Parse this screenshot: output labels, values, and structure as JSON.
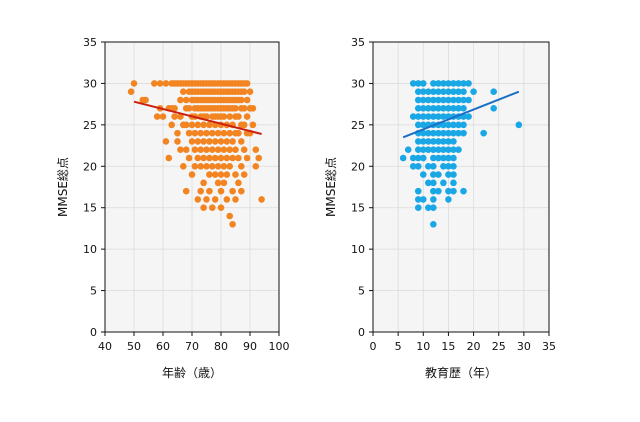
{
  "chart_data": [
    {
      "type": "scatter",
      "xlabel": "年齢（歳）",
      "ylabel": "MMSE総点",
      "xlim": [
        40,
        100
      ],
      "ylim": [
        0,
        35
      ],
      "xticks": [
        40,
        50,
        60,
        70,
        80,
        90,
        100
      ],
      "yticks": [
        0,
        5,
        10,
        15,
        20,
        25,
        30,
        35
      ],
      "grid": true,
      "point_color": "#f28522",
      "trend_color": "#cc1f10",
      "trendline": {
        "x": [
          50,
          94
        ],
        "y": [
          27.8,
          23.9
        ]
      },
      "points": [
        [
          49,
          29
        ],
        [
          50,
          30
        ],
        [
          53,
          28
        ],
        [
          54,
          28
        ],
        [
          57,
          30
        ],
        [
          58,
          26
        ],
        [
          59,
          30
        ],
        [
          59,
          27
        ],
        [
          60,
          26
        ],
        [
          61,
          30
        ],
        [
          61,
          23
        ],
        [
          62,
          27
        ],
        [
          62,
          21
        ],
        [
          63,
          30
        ],
        [
          63,
          27
        ],
        [
          63,
          25
        ],
        [
          64,
          30
        ],
        [
          64,
          27
        ],
        [
          64,
          26
        ],
        [
          65,
          30
        ],
        [
          65,
          24
        ],
        [
          65,
          23
        ],
        [
          66,
          30
        ],
        [
          66,
          28
        ],
        [
          66,
          26
        ],
        [
          66,
          22
        ],
        [
          67,
          30
        ],
        [
          67,
          29
        ],
        [
          67,
          25
        ],
        [
          67,
          20
        ],
        [
          68,
          30
        ],
        [
          68,
          28
        ],
        [
          68,
          27
        ],
        [
          68,
          25
        ],
        [
          68,
          22
        ],
        [
          68,
          17
        ],
        [
          69,
          30
        ],
        [
          69,
          29
        ],
        [
          69,
          27
        ],
        [
          69,
          24
        ],
        [
          69,
          21
        ],
        [
          70,
          30
        ],
        [
          70,
          29
        ],
        [
          70,
          28
        ],
        [
          70,
          26
        ],
        [
          70,
          25
        ],
        [
          70,
          23
        ],
        [
          70,
          19
        ],
        [
          71,
          30
        ],
        [
          71,
          29
        ],
        [
          71,
          28
        ],
        [
          71,
          27
        ],
        [
          71,
          26
        ],
        [
          71,
          24
        ],
        [
          71,
          22
        ],
        [
          71,
          20
        ],
        [
          72,
          30
        ],
        [
          72,
          29
        ],
        [
          72,
          28
        ],
        [
          72,
          27
        ],
        [
          72,
          25
        ],
        [
          72,
          23
        ],
        [
          72,
          21
        ],
        [
          72,
          16
        ],
        [
          73,
          30
        ],
        [
          73,
          29
        ],
        [
          73,
          28
        ],
        [
          73,
          27
        ],
        [
          73,
          26
        ],
        [
          73,
          24
        ],
        [
          73,
          22
        ],
        [
          73,
          20
        ],
        [
          73,
          17
        ],
        [
          74,
          30
        ],
        [
          74,
          29
        ],
        [
          74,
          28
        ],
        [
          74,
          27
        ],
        [
          74,
          26
        ],
        [
          74,
          25
        ],
        [
          74,
          23
        ],
        [
          74,
          21
        ],
        [
          74,
          18
        ],
        [
          74,
          15
        ],
        [
          75,
          30
        ],
        [
          75,
          29
        ],
        [
          75,
          28
        ],
        [
          75,
          27
        ],
        [
          75,
          26
        ],
        [
          75,
          24
        ],
        [
          75,
          22
        ],
        [
          75,
          20
        ],
        [
          75,
          16
        ],
        [
          76,
          30
        ],
        [
          76,
          29
        ],
        [
          76,
          28
        ],
        [
          76,
          27
        ],
        [
          76,
          25
        ],
        [
          76,
          23
        ],
        [
          76,
          21
        ],
        [
          76,
          19
        ],
        [
          76,
          17
        ],
        [
          77,
          30
        ],
        [
          77,
          29
        ],
        [
          77,
          28
        ],
        [
          77,
          27
        ],
        [
          77,
          26
        ],
        [
          77,
          24
        ],
        [
          77,
          22
        ],
        [
          77,
          20
        ],
        [
          77,
          15
        ],
        [
          78,
          30
        ],
        [
          78,
          29
        ],
        [
          78,
          28
        ],
        [
          78,
          27
        ],
        [
          78,
          26
        ],
        [
          78,
          25
        ],
        [
          78,
          23
        ],
        [
          78,
          21
        ],
        [
          78,
          19
        ],
        [
          78,
          16
        ],
        [
          79,
          30
        ],
        [
          79,
          29
        ],
        [
          79,
          28
        ],
        [
          79,
          27
        ],
        [
          79,
          26
        ],
        [
          79,
          24
        ],
        [
          79,
          22
        ],
        [
          79,
          20
        ],
        [
          79,
          18
        ],
        [
          80,
          30
        ],
        [
          80,
          29
        ],
        [
          80,
          28
        ],
        [
          80,
          27
        ],
        [
          80,
          26
        ],
        [
          80,
          25
        ],
        [
          80,
          23
        ],
        [
          80,
          21
        ],
        [
          80,
          19
        ],
        [
          80,
          17
        ],
        [
          80,
          15
        ],
        [
          81,
          30
        ],
        [
          81,
          29
        ],
        [
          81,
          28
        ],
        [
          81,
          27
        ],
        [
          81,
          26
        ],
        [
          81,
          24
        ],
        [
          81,
          22
        ],
        [
          81,
          20
        ],
        [
          81,
          18
        ],
        [
          82,
          30
        ],
        [
          82,
          29
        ],
        [
          82,
          28
        ],
        [
          82,
          27
        ],
        [
          82,
          25
        ],
        [
          82,
          23
        ],
        [
          82,
          21
        ],
        [
          82,
          19
        ],
        [
          82,
          16
        ],
        [
          83,
          30
        ],
        [
          83,
          29
        ],
        [
          83,
          28
        ],
        [
          83,
          27
        ],
        [
          83,
          26
        ],
        [
          83,
          24
        ],
        [
          83,
          22
        ],
        [
          83,
          20
        ],
        [
          83,
          14
        ],
        [
          84,
          30
        ],
        [
          84,
          29
        ],
        [
          84,
          28
        ],
        [
          84,
          27
        ],
        [
          84,
          25
        ],
        [
          84,
          23
        ],
        [
          84,
          21
        ],
        [
          84,
          17
        ],
        [
          84,
          13
        ],
        [
          85,
          30
        ],
        [
          85,
          29
        ],
        [
          85,
          28
        ],
        [
          85,
          27
        ],
        [
          85,
          26
        ],
        [
          85,
          24
        ],
        [
          85,
          22
        ],
        [
          85,
          19
        ],
        [
          85,
          16
        ],
        [
          86,
          30
        ],
        [
          86,
          29
        ],
        [
          86,
          28
        ],
        [
          86,
          26
        ],
        [
          86,
          24
        ],
        [
          86,
          21
        ],
        [
          86,
          18
        ],
        [
          87,
          30
        ],
        [
          87,
          29
        ],
        [
          87,
          28
        ],
        [
          87,
          27
        ],
        [
          87,
          25
        ],
        [
          87,
          23
        ],
        [
          87,
          20
        ],
        [
          87,
          17
        ],
        [
          88,
          30
        ],
        [
          88,
          29
        ],
        [
          88,
          27
        ],
        [
          88,
          25
        ],
        [
          88,
          22
        ],
        [
          88,
          19
        ],
        [
          89,
          30
        ],
        [
          89,
          28
        ],
        [
          89,
          26
        ],
        [
          89,
          24
        ],
        [
          89,
          21
        ],
        [
          90,
          29
        ],
        [
          90,
          27
        ],
        [
          90,
          24
        ],
        [
          91,
          27
        ],
        [
          91,
          25
        ],
        [
          92,
          22
        ],
        [
          92,
          20
        ],
        [
          93,
          21
        ],
        [
          94,
          16
        ]
      ]
    },
    {
      "type": "scatter",
      "xlabel": "教育歴（年）",
      "ylabel": "MMSE総点",
      "xlim": [
        0,
        35
      ],
      "ylim": [
        0,
        35
      ],
      "xticks": [
        0,
        5,
        10,
        15,
        20,
        25,
        30,
        35
      ],
      "yticks": [
        0,
        5,
        10,
        15,
        20,
        25,
        30,
        35
      ],
      "grid": true,
      "point_color": "#1aa7e6",
      "trend_color": "#1a6fc4",
      "trendline": {
        "x": [
          6,
          29
        ],
        "y": [
          23.5,
          29.0
        ]
      },
      "points": [
        [
          6,
          21
        ],
        [
          7,
          22
        ],
        [
          8,
          30
        ],
        [
          8,
          26
        ],
        [
          8,
          21
        ],
        [
          8,
          20
        ],
        [
          9,
          30
        ],
        [
          9,
          29
        ],
        [
          9,
          28
        ],
        [
          9,
          27
        ],
        [
          9,
          26
        ],
        [
          9,
          25
        ],
        [
          9,
          24
        ],
        [
          9,
          23
        ],
        [
          9,
          22
        ],
        [
          9,
          21
        ],
        [
          9,
          20
        ],
        [
          9,
          17
        ],
        [
          9,
          16
        ],
        [
          9,
          15
        ],
        [
          10,
          30
        ],
        [
          10,
          29
        ],
        [
          10,
          28
        ],
        [
          10,
          27
        ],
        [
          10,
          26
        ],
        [
          10,
          25
        ],
        [
          10,
          24
        ],
        [
          10,
          23
        ],
        [
          10,
          22
        ],
        [
          10,
          21
        ],
        [
          10,
          19
        ],
        [
          10,
          16
        ],
        [
          11,
          29
        ],
        [
          11,
          28
        ],
        [
          11,
          27
        ],
        [
          11,
          26
        ],
        [
          11,
          25
        ],
        [
          11,
          24
        ],
        [
          11,
          23
        ],
        [
          11,
          22
        ],
        [
          11,
          20
        ],
        [
          11,
          18
        ],
        [
          11,
          15
        ],
        [
          12,
          30
        ],
        [
          12,
          29
        ],
        [
          12,
          28
        ],
        [
          12,
          27
        ],
        [
          12,
          26
        ],
        [
          12,
          25
        ],
        [
          12,
          24
        ],
        [
          12,
          23
        ],
        [
          12,
          22
        ],
        [
          12,
          21
        ],
        [
          12,
          20
        ],
        [
          12,
          19
        ],
        [
          12,
          18
        ],
        [
          12,
          17
        ],
        [
          12,
          16
        ],
        [
          12,
          15
        ],
        [
          12,
          13
        ],
        [
          13,
          30
        ],
        [
          13,
          29
        ],
        [
          13,
          28
        ],
        [
          13,
          27
        ],
        [
          13,
          26
        ],
        [
          13,
          25
        ],
        [
          13,
          24
        ],
        [
          13,
          23
        ],
        [
          13,
          22
        ],
        [
          13,
          21
        ],
        [
          13,
          19
        ],
        [
          13,
          17
        ],
        [
          14,
          30
        ],
        [
          14,
          29
        ],
        [
          14,
          28
        ],
        [
          14,
          27
        ],
        [
          14,
          26
        ],
        [
          14,
          25
        ],
        [
          14,
          24
        ],
        [
          14,
          23
        ],
        [
          14,
          22
        ],
        [
          14,
          21
        ],
        [
          14,
          20
        ],
        [
          14,
          18
        ],
        [
          15,
          30
        ],
        [
          15,
          29
        ],
        [
          15,
          28
        ],
        [
          15,
          27
        ],
        [
          15,
          26
        ],
        [
          15,
          25
        ],
        [
          15,
          24
        ],
        [
          15,
          23
        ],
        [
          15,
          22
        ],
        [
          15,
          21
        ],
        [
          15,
          20
        ],
        [
          15,
          19
        ],
        [
          15,
          17
        ],
        [
          15,
          16
        ],
        [
          16,
          30
        ],
        [
          16,
          29
        ],
        [
          16,
          28
        ],
        [
          16,
          27
        ],
        [
          16,
          26
        ],
        [
          16,
          25
        ],
        [
          16,
          24
        ],
        [
          16,
          23
        ],
        [
          16,
          22
        ],
        [
          16,
          21
        ],
        [
          16,
          20
        ],
        [
          16,
          19
        ],
        [
          16,
          18
        ],
        [
          16,
          17
        ],
        [
          17,
          30
        ],
        [
          17,
          29
        ],
        [
          17,
          28
        ],
        [
          17,
          27
        ],
        [
          17,
          26
        ],
        [
          17,
          25
        ],
        [
          17,
          24
        ],
        [
          17,
          22
        ],
        [
          18,
          30
        ],
        [
          18,
          29
        ],
        [
          18,
          28
        ],
        [
          18,
          27
        ],
        [
          18,
          26
        ],
        [
          18,
          25
        ],
        [
          18,
          24
        ],
        [
          18,
          17
        ],
        [
          19,
          30
        ],
        [
          19,
          28
        ],
        [
          19,
          26
        ],
        [
          20,
          29
        ],
        [
          22,
          24
        ],
        [
          24,
          29
        ],
        [
          24,
          27
        ],
        [
          29,
          25
        ]
      ]
    }
  ]
}
